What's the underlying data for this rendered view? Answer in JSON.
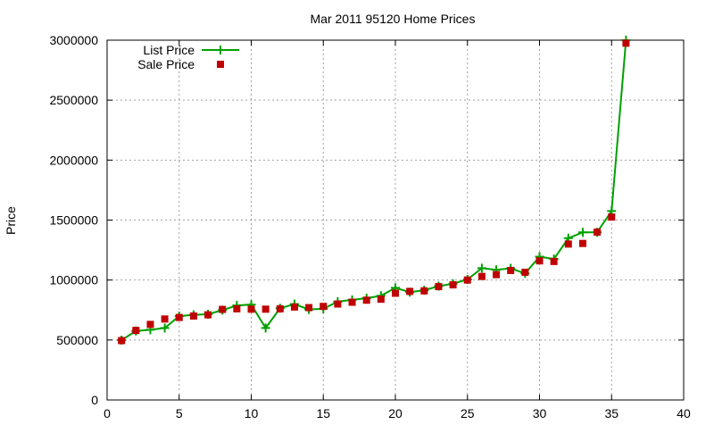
{
  "chart_data": {
    "type": "line",
    "title": "Mar 2011 95120 Home Prices",
    "xlabel": "",
    "ylabel": "Price",
    "xlim": [
      0,
      40
    ],
    "ylim": [
      0,
      3000000
    ],
    "x_ticks": [
      "0",
      "5",
      "10",
      "15",
      "20",
      "25",
      "30",
      "35",
      "40"
    ],
    "y_ticks": [
      "0",
      "500000",
      "1000000",
      "1500000",
      "2000000",
      "2500000",
      "3000000"
    ],
    "grid": true,
    "legend_position": "top-left",
    "series": [
      {
        "name": "List Price",
        "style": "lines+points",
        "color": "#00a000",
        "marker": "plus",
        "x": [
          1,
          2,
          3,
          4,
          5,
          6,
          7,
          8,
          9,
          10,
          11,
          12,
          13,
          14,
          15,
          16,
          17,
          18,
          19,
          20,
          21,
          22,
          23,
          24,
          25,
          26,
          27,
          28,
          29,
          30,
          31,
          32,
          33,
          34,
          35,
          36
        ],
        "y": [
          499000,
          575000,
          585000,
          600000,
          699000,
          710000,
          715000,
          749000,
          788000,
          795000,
          600000,
          765000,
          799000,
          755000,
          760000,
          820000,
          835000,
          849000,
          869000,
          935000,
          899000,
          915000,
          949000,
          969000,
          1005000,
          1099000,
          1085000,
          1098000,
          1055000,
          1195000,
          1175000,
          1349000,
          1398000,
          1399000,
          1575000,
          3000000
        ]
      },
      {
        "name": "Sale Price",
        "style": "points",
        "color": "#c00000",
        "marker": "square",
        "x": [
          1,
          2,
          3,
          4,
          5,
          6,
          7,
          8,
          9,
          10,
          11,
          12,
          13,
          14,
          15,
          16,
          17,
          18,
          19,
          20,
          21,
          22,
          23,
          24,
          25,
          26,
          27,
          28,
          29,
          30,
          31,
          32,
          33,
          34,
          35,
          36
        ],
        "y": [
          495000,
          580000,
          630000,
          675000,
          688000,
          700000,
          710000,
          755000,
          760000,
          757000,
          757000,
          760000,
          775000,
          770000,
          780000,
          800000,
          815000,
          832000,
          840000,
          890000,
          905000,
          910000,
          945000,
          960000,
          1000000,
          1030000,
          1045000,
          1080000,
          1065000,
          1160000,
          1155000,
          1300000,
          1305000,
          1400000,
          1525000,
          2975000
        ]
      }
    ]
  }
}
